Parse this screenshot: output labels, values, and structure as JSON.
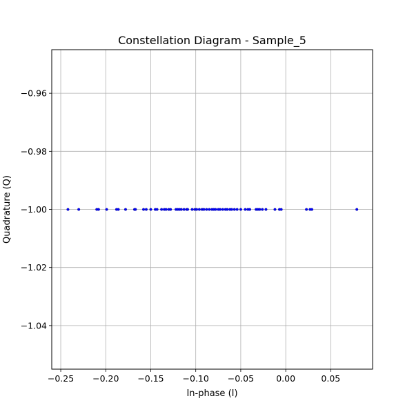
{
  "chart_data": {
    "type": "scatter",
    "title": "Constellation Diagram - Sample_5",
    "xlabel": "In-phase (I)",
    "ylabel": "Quadrature (Q)",
    "xlim": [
      -0.26,
      0.0965
    ],
    "ylim": [
      -1.055,
      -0.945
    ],
    "xticks": [
      -0.25,
      -0.2,
      -0.15,
      -0.1,
      -0.05,
      0.0,
      0.05
    ],
    "xtick_labels": [
      "−0.25",
      "−0.20",
      "−0.15",
      "−0.10",
      "−0.05",
      "0.00",
      "0.05"
    ],
    "yticks": [
      -0.96,
      -0.98,
      -1.0,
      -1.02,
      -1.04
    ],
    "ytick_labels": [
      "−0.96",
      "−0.98",
      "−1.00",
      "−1.02",
      "−1.04"
    ],
    "grid": true,
    "marker_color": "#0000ff",
    "series": [
      {
        "x": [
          -0.242,
          -0.23,
          -0.21,
          -0.208,
          -0.199,
          -0.188,
          -0.186,
          -0.178,
          -0.168,
          -0.167,
          -0.158,
          -0.155,
          -0.15,
          -0.145,
          -0.143,
          -0.138,
          -0.135,
          -0.133,
          -0.13,
          -0.128,
          -0.122,
          -0.12,
          -0.118,
          -0.116,
          -0.113,
          -0.11,
          -0.109,
          -0.104,
          -0.101,
          -0.099,
          -0.096,
          -0.093,
          -0.091,
          -0.088,
          -0.085,
          -0.082,
          -0.08,
          -0.078,
          -0.075,
          -0.073,
          -0.07,
          -0.067,
          -0.065,
          -0.062,
          -0.06,
          -0.057,
          -0.054,
          -0.05,
          -0.045,
          -0.042,
          -0.04,
          -0.033,
          -0.031,
          -0.029,
          -0.026,
          -0.022,
          -0.012,
          -0.007,
          -0.005,
          0.023,
          0.027,
          0.029,
          0.079
        ],
        "y": [
          -1.0,
          -1.0,
          -1.0,
          -1.0,
          -1.0,
          -1.0,
          -1.0,
          -1.0,
          -1.0,
          -1.0,
          -1.0,
          -1.0,
          -1.0,
          -1.0,
          -1.0,
          -1.0,
          -1.0,
          -1.0,
          -1.0,
          -1.0,
          -1.0,
          -1.0,
          -1.0,
          -1.0,
          -1.0,
          -1.0,
          -1.0,
          -1.0,
          -1.0,
          -1.0,
          -1.0,
          -1.0,
          -1.0,
          -1.0,
          -1.0,
          -1.0,
          -1.0,
          -1.0,
          -1.0,
          -1.0,
          -1.0,
          -1.0,
          -1.0,
          -1.0,
          -1.0,
          -1.0,
          -1.0,
          -1.0,
          -1.0,
          -1.0,
          -1.0,
          -1.0,
          -1.0,
          -1.0,
          -1.0,
          -1.0,
          -1.0,
          -1.0,
          -1.0,
          -1.0,
          -1.0,
          -1.0,
          -1.0
        ]
      }
    ]
  }
}
